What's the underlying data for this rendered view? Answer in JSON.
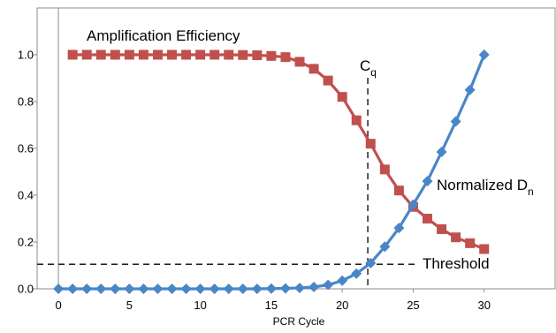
{
  "chart_data": {
    "type": "line",
    "xlabel": "PCR Cycle",
    "ylabel": "",
    "xlim": [
      -1.5,
      35
    ],
    "ylim": [
      0,
      1.2
    ],
    "xticks": [
      0,
      5,
      10,
      15,
      20,
      25,
      30
    ],
    "yticks": [
      0.0,
      0.2,
      0.4,
      0.6,
      0.8,
      1.0
    ],
    "xtick_labels": [
      "0",
      "5",
      "10",
      "15",
      "20",
      "25",
      "30"
    ],
    "ytick_labels": [
      "0.0",
      "0.2",
      "0.4",
      "0.6",
      "0.8",
      "1.0"
    ],
    "grid": false,
    "series": [
      {
        "name": "Amplification Efficiency",
        "color": "#c0504d",
        "marker": "square",
        "x": [
          1,
          2,
          3,
          4,
          5,
          6,
          7,
          8,
          9,
          10,
          11,
          12,
          13,
          14,
          15,
          16,
          17,
          18,
          19,
          20,
          21,
          22,
          23,
          24,
          25,
          26,
          27,
          28,
          29,
          30
        ],
        "y": [
          1.0,
          1.0,
          1.0,
          1.0,
          1.0,
          1.0,
          1.0,
          1.0,
          1.0,
          1.0,
          1.0,
          1.0,
          0.999,
          0.998,
          0.995,
          0.99,
          0.97,
          0.94,
          0.89,
          0.82,
          0.72,
          0.62,
          0.51,
          0.42,
          0.35,
          0.3,
          0.255,
          0.22,
          0.195,
          0.17
        ]
      },
      {
        "name": "Normalized D_n",
        "name_main": "Normalized D",
        "name_sub": "n",
        "color": "#4a86c5",
        "marker": "diamond",
        "x": [
          0,
          1,
          2,
          3,
          4,
          5,
          6,
          7,
          8,
          9,
          10,
          11,
          12,
          13,
          14,
          15,
          16,
          17,
          18,
          19,
          20,
          21,
          22,
          23,
          24,
          25,
          26,
          27,
          28,
          29,
          30
        ],
        "y": [
          0,
          0,
          0,
          0,
          0,
          0,
          0,
          0,
          0,
          0,
          0,
          0,
          0,
          0,
          0,
          0.001,
          0.002,
          0.004,
          0.008,
          0.017,
          0.035,
          0.065,
          0.11,
          0.18,
          0.26,
          0.36,
          0.46,
          0.585,
          0.715,
          0.85,
          1.0
        ]
      }
    ],
    "threshold": {
      "label": "Threshold",
      "y": 0.105
    },
    "cq": {
      "label_main": "C",
      "label_sub": "q",
      "x": 21.8
    }
  }
}
